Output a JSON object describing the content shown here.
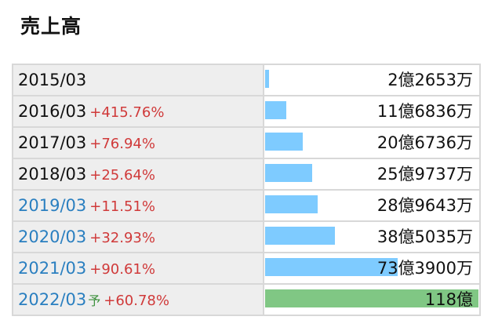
{
  "title": "売上高",
  "rows": [
    {
      "year": "2015/03",
      "yoy": "",
      "est": "",
      "amount": "2億2653万",
      "value_oku": 2.2653,
      "link": false,
      "estimate": false
    },
    {
      "year": "2016/03",
      "yoy": "+415.76%",
      "est": "",
      "amount": "11億6836万",
      "value_oku": 11.6836,
      "link": false,
      "estimate": false
    },
    {
      "year": "2017/03",
      "yoy": "+76.94%",
      "est": "",
      "amount": "20億6736万",
      "value_oku": 20.6736,
      "link": false,
      "estimate": false
    },
    {
      "year": "2018/03",
      "yoy": "+25.64%",
      "est": "",
      "amount": "25億9737万",
      "value_oku": 25.9737,
      "link": false,
      "estimate": false
    },
    {
      "year": "2019/03",
      "yoy": "+11.51%",
      "est": "",
      "amount": "28億9643万",
      "value_oku": 28.9643,
      "link": true,
      "estimate": false
    },
    {
      "year": "2020/03",
      "yoy": "+32.93%",
      "est": "",
      "amount": "38億5035万",
      "value_oku": 38.5035,
      "link": true,
      "estimate": false
    },
    {
      "year": "2021/03",
      "yoy": "+90.61%",
      "est": "",
      "amount": "73億3900万",
      "value_oku": 73.39,
      "link": true,
      "estimate": false
    },
    {
      "year": "2022/03",
      "yoy": "+60.78%",
      "est": "予",
      "amount": "118億",
      "value_oku": 118,
      "link": true,
      "estimate": true
    }
  ],
  "colors": {
    "bar": "#7ecbff",
    "bar_estimate": "#80c784",
    "yoy": "#d03a3a",
    "link": "#2a7fc0"
  }
}
